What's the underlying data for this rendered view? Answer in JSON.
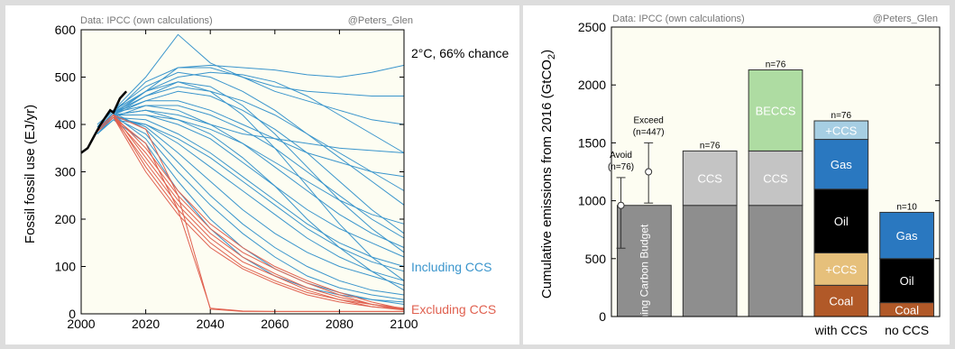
{
  "chart_data": [
    {
      "type": "line",
      "source_note": "Data: IPCC (own calculations)",
      "credit": "@Peters_Glen",
      "ylabel": "Fossil fossil use (EJ/yr)",
      "xlim": [
        2000,
        2100
      ],
      "ylim": [
        0,
        600
      ],
      "xticks": [
        2000,
        2020,
        2040,
        2060,
        2080,
        2100
      ],
      "yticks": [
        0,
        100,
        200,
        300,
        400,
        500,
        600
      ],
      "annotation": "2°C, 66% chance",
      "legend": [
        {
          "label": "Including CCS",
          "color": "#3a95cc"
        },
        {
          "label": "Excluding CCS",
          "color": "#e06150"
        }
      ],
      "historical": {
        "color": "#000000",
        "x": [
          2000,
          2002,
          2004,
          2006,
          2008,
          2009,
          2010,
          2012,
          2014
        ],
        "y": [
          340,
          350,
          375,
          400,
          420,
          430,
          425,
          455,
          470
        ]
      },
      "scenarios_ccs": [
        {
          "x": [
            2005,
            2010,
            2020,
            2030,
            2040,
            2050,
            2060,
            2070,
            2080,
            2090,
            2100
          ],
          "y": [
            390,
            420,
            470,
            520,
            525,
            520,
            515,
            505,
            500,
            510,
            525
          ]
        },
        {
          "x": [
            2005,
            2010,
            2020,
            2030,
            2040,
            2050,
            2060,
            2070,
            2080,
            2090,
            2100
          ],
          "y": [
            400,
            430,
            500,
            590,
            530,
            500,
            480,
            470,
            465,
            460,
            460
          ]
        },
        {
          "x": [
            2005,
            2010,
            2020,
            2030,
            2040,
            2050,
            2060,
            2070,
            2080,
            2090,
            2100
          ],
          "y": [
            390,
            425,
            490,
            520,
            520,
            500,
            470,
            450,
            430,
            410,
            400
          ]
        },
        {
          "x": [
            2005,
            2010,
            2020,
            2030,
            2040,
            2050,
            2060,
            2070,
            2080,
            2090,
            2100
          ],
          "y": [
            395,
            430,
            470,
            500,
            510,
            505,
            490,
            460,
            420,
            380,
            340
          ]
        },
        {
          "x": [
            2005,
            2010,
            2020,
            2030,
            2040,
            2050,
            2060,
            2070,
            2080,
            2090,
            2100
          ],
          "y": [
            385,
            420,
            460,
            480,
            470,
            450,
            420,
            380,
            340,
            300,
            260
          ]
        },
        {
          "x": [
            2005,
            2010,
            2020,
            2030,
            2040,
            2050,
            2060,
            2070,
            2080,
            2090,
            2100
          ],
          "y": [
            390,
            425,
            450,
            450,
            430,
            400,
            370,
            340,
            320,
            300,
            290
          ]
        },
        {
          "x": [
            2005,
            2010,
            2020,
            2030,
            2040,
            2050,
            2060,
            2070,
            2080,
            2090,
            2100
          ],
          "y": [
            380,
            415,
            440,
            440,
            420,
            390,
            350,
            300,
            250,
            200,
            160
          ]
        },
        {
          "x": [
            2005,
            2010,
            2020,
            2030,
            2040,
            2050,
            2060,
            2070,
            2080,
            2090,
            2100
          ],
          "y": [
            385,
            420,
            430,
            420,
            400,
            360,
            310,
            260,
            210,
            170,
            140
          ]
        },
        {
          "x": [
            2005,
            2010,
            2020,
            2030,
            2040,
            2050,
            2060,
            2070,
            2080,
            2090,
            2100
          ],
          "y": [
            390,
            420,
            420,
            400,
            370,
            320,
            270,
            220,
            180,
            150,
            120
          ]
        },
        {
          "x": [
            2005,
            2010,
            2020,
            2030,
            2040,
            2050,
            2060,
            2070,
            2080,
            2090,
            2100
          ],
          "y": [
            385,
            415,
            410,
            380,
            340,
            290,
            240,
            190,
            150,
            120,
            100
          ]
        },
        {
          "x": [
            2005,
            2010,
            2020,
            2030,
            2040,
            2050,
            2060,
            2070,
            2080,
            2090,
            2100
          ],
          "y": [
            380,
            410,
            400,
            360,
            310,
            260,
            210,
            160,
            120,
            90,
            70
          ]
        },
        {
          "x": [
            2005,
            2010,
            2020,
            2030,
            2040,
            2050,
            2060,
            2070,
            2080,
            2090,
            2100
          ],
          "y": [
            385,
            420,
            395,
            340,
            280,
            220,
            170,
            130,
            100,
            80,
            60
          ]
        },
        {
          "x": [
            2005,
            2010,
            2020,
            2030,
            2040,
            2050,
            2060,
            2070,
            2080,
            2090,
            2100
          ],
          "y": [
            390,
            425,
            390,
            320,
            250,
            190,
            140,
            100,
            70,
            50,
            40
          ]
        },
        {
          "x": [
            2005,
            2010,
            2020,
            2030,
            2040,
            2050,
            2060,
            2070,
            2080,
            2090,
            2100
          ],
          "y": [
            385,
            415,
            380,
            300,
            230,
            170,
            120,
            80,
            55,
            40,
            30
          ]
        },
        {
          "x": [
            2005,
            2010,
            2020,
            2030,
            2040,
            2050,
            2060,
            2070,
            2080,
            2090,
            2100
          ],
          "y": [
            390,
            420,
            370,
            280,
            200,
            140,
            95,
            65,
            45,
            30,
            25
          ]
        },
        {
          "x": [
            2005,
            2010,
            2020,
            2030,
            2040,
            2050,
            2060,
            2070,
            2080,
            2090,
            2100
          ],
          "y": [
            380,
            410,
            360,
            260,
            180,
            120,
            80,
            55,
            40,
            30,
            20
          ]
        },
        {
          "x": [
            2005,
            2010,
            2020,
            2030,
            2040,
            2050,
            2060,
            2070,
            2080,
            2090,
            2100
          ],
          "y": [
            385,
            420,
            450,
            470,
            460,
            430,
            390,
            340,
            280,
            220,
            170
          ]
        },
        {
          "x": [
            2005,
            2010,
            2020,
            2030,
            2040,
            2050,
            2060,
            2070,
            2080,
            2090,
            2100
          ],
          "y": [
            395,
            430,
            480,
            510,
            500,
            470,
            430,
            380,
            330,
            280,
            230
          ]
        },
        {
          "x": [
            2005,
            2010,
            2020,
            2030,
            2040,
            2050,
            2060,
            2070,
            2080,
            2090,
            2100
          ],
          "y": [
            390,
            425,
            440,
            430,
            400,
            380,
            370,
            360,
            350,
            345,
            340
          ]
        },
        {
          "x": [
            2005,
            2010,
            2020,
            2030,
            2040,
            2050,
            2060,
            2070,
            2080,
            2090,
            2100
          ],
          "y": [
            385,
            420,
            430,
            410,
            380,
            330,
            270,
            200,
            140,
            90,
            50
          ]
        },
        {
          "x": [
            2005,
            2010,
            2020,
            2030,
            2040,
            2050,
            2060,
            2070,
            2080,
            2090,
            2100
          ],
          "y": [
            390,
            425,
            460,
            490,
            480,
            440,
            380,
            310,
            240,
            180,
            130
          ]
        },
        {
          "x": [
            2005,
            2010,
            2020,
            2030,
            2040,
            2050,
            2060,
            2070,
            2080,
            2090,
            2100
          ],
          "y": [
            385,
            420,
            420,
            410,
            390,
            360,
            320,
            280,
            240,
            210,
            190
          ]
        },
        {
          "x": [
            2005,
            2010,
            2020,
            2030,
            2040,
            2050,
            2060,
            2070,
            2080,
            2090,
            2100
          ],
          "y": [
            380,
            415,
            400,
            370,
            330,
            280,
            230,
            180,
            140,
            110,
            90
          ]
        },
        {
          "x": [
            2005,
            2010,
            2020,
            2030,
            2040,
            2050,
            2060,
            2070,
            2080,
            2090,
            2100
          ],
          "y": [
            390,
            425,
            470,
            490,
            470,
            420,
            350,
            270,
            190,
            120,
            70
          ]
        }
      ],
      "scenarios_noccs": [
        {
          "x": [
            2005,
            2010,
            2020,
            2030,
            2040,
            2050,
            2060,
            2070,
            2080,
            2090,
            2100
          ],
          "y": [
            390,
            420,
            390,
            250,
            10,
            5,
            5,
            5,
            5,
            5,
            5
          ]
        },
        {
          "x": [
            2005,
            2010,
            2020,
            2030,
            2040,
            2050,
            2060,
            2070,
            2080,
            2090,
            2100
          ],
          "y": [
            385,
            415,
            360,
            220,
            12,
            6,
            5,
            5,
            5,
            5,
            5
          ]
        },
        {
          "x": [
            2005,
            2010,
            2020,
            2030,
            2040,
            2050,
            2060,
            2070,
            2080,
            2090,
            2100
          ],
          "y": [
            390,
            420,
            350,
            260,
            190,
            140,
            100,
            70,
            45,
            25,
            10
          ]
        },
        {
          "x": [
            2005,
            2010,
            2020,
            2030,
            2040,
            2050,
            2060,
            2070,
            2080,
            2090,
            2100
          ],
          "y": [
            385,
            415,
            340,
            250,
            180,
            130,
            95,
            65,
            40,
            20,
            8
          ]
        },
        {
          "x": [
            2005,
            2010,
            2020,
            2030,
            2040,
            2050,
            2060,
            2070,
            2080,
            2090,
            2100
          ],
          "y": [
            390,
            420,
            330,
            240,
            170,
            120,
            85,
            55,
            35,
            20,
            10
          ]
        },
        {
          "x": [
            2005,
            2010,
            2020,
            2030,
            2040,
            2050,
            2060,
            2070,
            2080,
            2090,
            2100
          ],
          "y": [
            385,
            415,
            320,
            230,
            160,
            110,
            80,
            50,
            30,
            15,
            8
          ]
        },
        {
          "x": [
            2005,
            2010,
            2020,
            2030,
            2040,
            2050,
            2060,
            2070,
            2080,
            2090,
            2100
          ],
          "y": [
            390,
            420,
            310,
            220,
            150,
            100,
            70,
            45,
            30,
            20,
            12
          ]
        },
        {
          "x": [
            2005,
            2010,
            2020,
            2030,
            2040,
            2050,
            2060,
            2070,
            2080,
            2090,
            2100
          ],
          "y": [
            385,
            415,
            300,
            210,
            140,
            95,
            65,
            40,
            25,
            15,
            10
          ]
        }
      ]
    },
    {
      "type": "bar",
      "source_note": "Data: IPCC (own calculations)",
      "credit": "@Peters_Glen",
      "ylabel": "Cumulative emissions from 2016 (GtCO",
      "ylabel_sub": "2",
      "ylabel_close": ")",
      "ylim": [
        0,
        2500
      ],
      "yticks": [
        0,
        500,
        1000,
        1500,
        2000,
        2500
      ],
      "bars": [
        {
          "id": "budget",
          "label_top": "",
          "segments": [
            {
              "label": "Remaining Carbon Budget",
              "value": 960,
              "color": "#8e8e8e",
              "vertical": true
            }
          ]
        },
        {
          "id": "ccs",
          "label_top": "n=76",
          "segments": [
            {
              "label": "",
              "value": 960,
              "color": "#8e8e8e"
            },
            {
              "label": "CCS",
              "value": 470,
              "color": "#c4c4c4"
            }
          ]
        },
        {
          "id": "beccs",
          "label_top": "n=76",
          "segments": [
            {
              "label": "",
              "value": 960,
              "color": "#8e8e8e"
            },
            {
              "label": "CCS",
              "value": 470,
              "color": "#c4c4c4"
            },
            {
              "label": "BECCS",
              "value": 700,
              "color": "#aedca2"
            }
          ]
        },
        {
          "id": "with-ccs",
          "label_top": "n=76",
          "xlabel": "with CCS",
          "segments": [
            {
              "label": "Coal",
              "value": 270,
              "color": "#b15928"
            },
            {
              "label": "+CCS",
              "value": 280,
              "color": "#e6c07b"
            },
            {
              "label": "Oil",
              "value": 550,
              "color": "#000000"
            },
            {
              "label": "Gas",
              "value": 430,
              "color": "#2a78c0"
            },
            {
              "label": "+CCS",
              "value": 160,
              "color": "#a6cee3"
            }
          ]
        },
        {
          "id": "no-ccs",
          "label_top": "n=10",
          "xlabel": "no CCS",
          "segments": [
            {
              "label": "Coal",
              "value": 120,
              "color": "#b15928"
            },
            {
              "label": "Oil",
              "value": 380,
              "color": "#000000"
            },
            {
              "label": "Gas",
              "value": 400,
              "color": "#2a78c0"
            }
          ]
        }
      ],
      "errorbars": [
        {
          "label_line1": "Avoid",
          "label_line2": "(n=76)",
          "center": 960,
          "low": 590,
          "high": 1200
        },
        {
          "label_line1": "Exceed",
          "label_line2": "(n=447)",
          "center": 1250,
          "low": 980,
          "high": 1500
        }
      ]
    }
  ]
}
